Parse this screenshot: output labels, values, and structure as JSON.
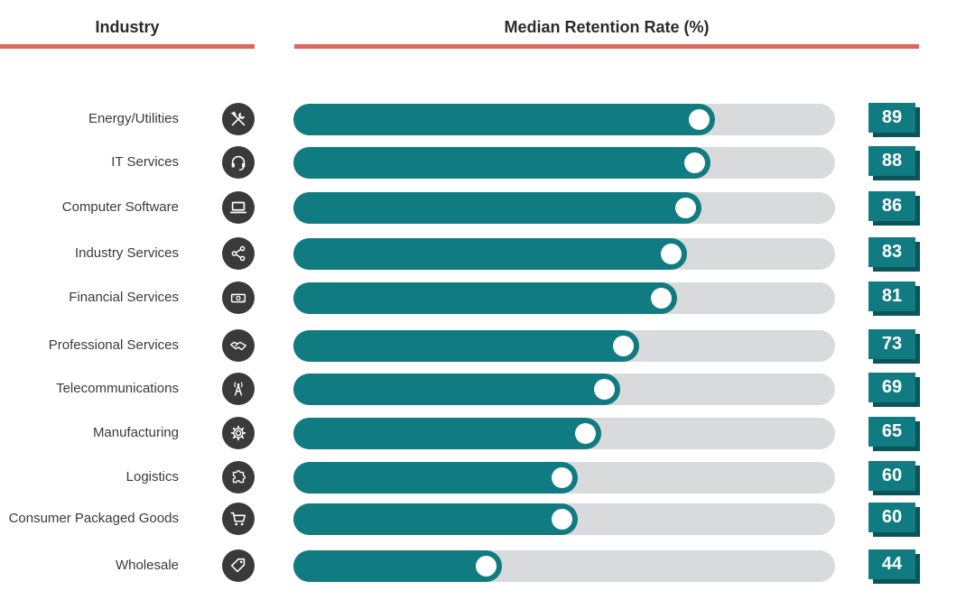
{
  "colors": {
    "accent_rule": "#e0645a",
    "bar_fill": "#117b82",
    "bar_track": "#d9dadb",
    "value_box": "#117b82",
    "value_box_shadow": "#0a5559",
    "icon_circle": "#3a3a3a"
  },
  "headers": {
    "industry": "Industry",
    "rate": "Median Retention Rate (%)"
  },
  "chart_data": {
    "type": "bar",
    "orientation": "horizontal",
    "xlim": [
      0,
      100
    ],
    "categories": [
      "Energy/Utilities",
      "IT Services",
      "Computer Software",
      "Industry Services",
      "Financial Services",
      "Professional Services",
      "Telecommunications",
      "Manufacturing",
      "Logistics",
      "Consumer Packaged Goods",
      "Wholesale"
    ],
    "values": [
      89,
      88,
      86,
      83,
      81,
      73,
      69,
      65,
      60,
      60,
      44
    ],
    "icons": [
      "tools-icon",
      "headset-icon",
      "laptop-icon",
      "share-icon",
      "banknote-icon",
      "handshake-icon",
      "antenna-icon",
      "gear-icon",
      "puzzle-icon",
      "cart-icon",
      "tag-icon"
    ]
  }
}
